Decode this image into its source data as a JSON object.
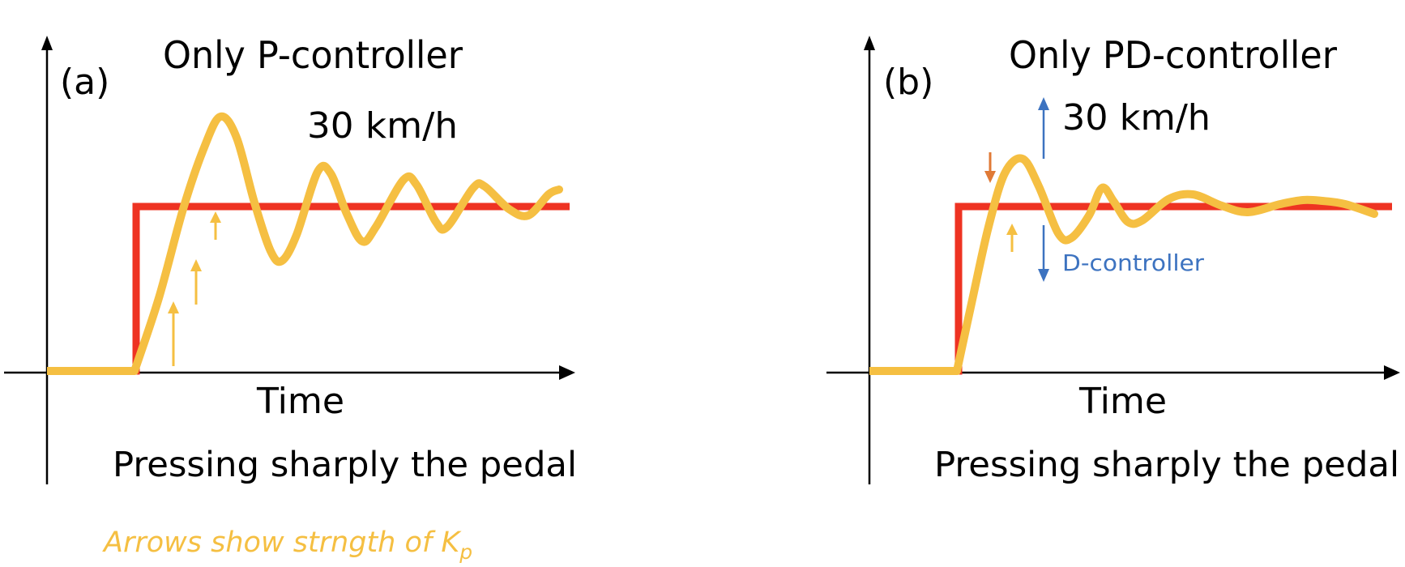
{
  "panels": [
    {
      "label": "(a)",
      "title": "Only P-controller",
      "speed": "30 km/h",
      "xlabel": "Time",
      "caption": "Pressing sharply the pedal"
    },
    {
      "label": "(b)",
      "title": "Only PD-controller",
      "speed": "30 km/h",
      "xlabel": "Time",
      "caption": "Pressing sharply the pedal",
      "d_label": "D-controller"
    }
  ],
  "note": {
    "text": "Arrows show strngth of K",
    "subscript": "p"
  },
  "colors": {
    "setpoint": "#ee3322",
    "response": "#f5bf42",
    "kp_arrow": "#f5bf42",
    "d_arrow": "#3d73c0",
    "overshoot_arrow": "#e07a36",
    "axis": "#000000"
  }
}
